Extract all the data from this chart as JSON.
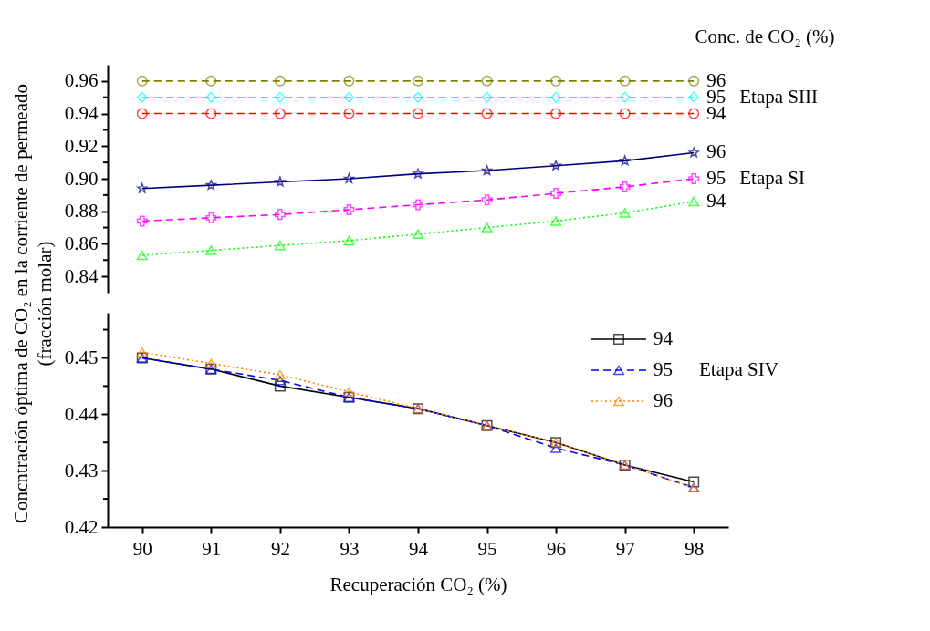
{
  "chart_data": [
    {
      "type": "line",
      "legend_title": "Conc. de CO₂ (%)",
      "ylabel": "Concntración óptima de CO₂ en la corriente de permeado\n(fracción molar)",
      "categories": [
        null,
        null,
        null,
        null,
        null,
        null,
        null,
        null,
        null
      ],
      "ylim": [
        0.83,
        0.97
      ],
      "yticks": [
        0.84,
        {
          "value": 0.85,
          "label": null
        },
        0.86,
        {
          "value": 0.87,
          "label": null
        },
        0.88,
        {
          "value": 0.89,
          "label": null
        },
        {
          "value": 0.9,
          "label": "0.90"
        },
        {
          "value": 0.91,
          "label": null
        },
        0.92,
        {
          "value": 0.93,
          "label": null
        },
        0.94,
        {
          "value": 0.95,
          "label": null
        },
        0.96
      ],
      "tick_labels": "y",
      "legend": "right",
      "annotations": [
        "Etapa SIII",
        "Etapa SI"
      ],
      "series": [
        {
          "name": "96",
          "color": "#808000",
          "marker": "circle",
          "line_style": "dashed",
          "values": [
            0.96,
            0.96,
            0.96,
            0.96,
            0.96,
            0.96,
            0.96,
            0.96,
            0.96
          ]
        },
        {
          "name": "95",
          "color": "#00ffff",
          "marker": "diamond",
          "line_style": "dashed",
          "values": [
            0.95,
            0.95,
            0.95,
            0.95,
            0.95,
            0.95,
            0.95,
            0.95,
            0.95
          ]
        },
        {
          "name": "94",
          "color": "#ff0000",
          "marker": "circle",
          "line_style": "dashed",
          "values": [
            0.94,
            0.94,
            0.94,
            0.94,
            0.94,
            0.94,
            0.94,
            0.94,
            0.94
          ]
        },
        {
          "name": "96",
          "color": "#000080",
          "marker": "star",
          "line_style": "solid",
          "values": [
            0.894,
            0.896,
            0.898,
            0.9,
            0.903,
            0.905,
            0.908,
            0.911,
            0.916
          ]
        },
        {
          "name": "95",
          "color": "#ff00ff",
          "marker": "cross",
          "line_style": "dashed",
          "values": [
            0.874,
            0.876,
            0.878,
            0.881,
            0.884,
            0.887,
            0.891,
            0.895,
            0.9
          ]
        },
        {
          "name": "94",
          "color": "#00ff00",
          "marker": "triangle",
          "line_style": "dotted",
          "values": [
            0.853,
            0.856,
            0.859,
            0.862,
            0.866,
            0.87,
            0.874,
            0.879,
            0.886
          ]
        }
      ]
    },
    {
      "type": "line",
      "xlabel": "Recuperación CO₂ (%)",
      "x": [
        90,
        91,
        92,
        93,
        94,
        95,
        96,
        97,
        98
      ],
      "xlim": [
        89.5,
        98.5
      ],
      "xticks": [
        90,
        91,
        92,
        93,
        94,
        95,
        96,
        97,
        98
      ],
      "ylim": [
        0.42,
        0.458
      ],
      "yticks": [
        0.42,
        {
          "value": 0.425,
          "label": null
        },
        0.43,
        {
          "value": 0.435,
          "label": null
        },
        0.44,
        {
          "value": 0.445,
          "label": null
        },
        0.45,
        {
          "value": 0.455,
          "label": null
        }
      ],
      "legend": "top right",
      "annotations": [
        "Etapa SIV"
      ],
      "series": [
        {
          "name": "94",
          "color": "#000000",
          "marker": "square",
          "line_style": "solid",
          "values": [
            0.45,
            0.448,
            0.445,
            0.443,
            0.441,
            0.438,
            0.435,
            0.431,
            0.428
          ]
        },
        {
          "name": "95",
          "color": "#0000ff",
          "marker": "triangle",
          "line_style": "dashed",
          "values": [
            0.45,
            0.448,
            0.446,
            0.443,
            0.441,
            0.438,
            0.434,
            0.431,
            0.427
          ]
        },
        {
          "name": "96",
          "color": "#ff8000",
          "marker": "triangle",
          "line_style": "dotted",
          "values": [
            0.451,
            0.449,
            0.447,
            0.444,
            0.441,
            0.438,
            0.435,
            0.431,
            0.427
          ]
        }
      ]
    }
  ]
}
